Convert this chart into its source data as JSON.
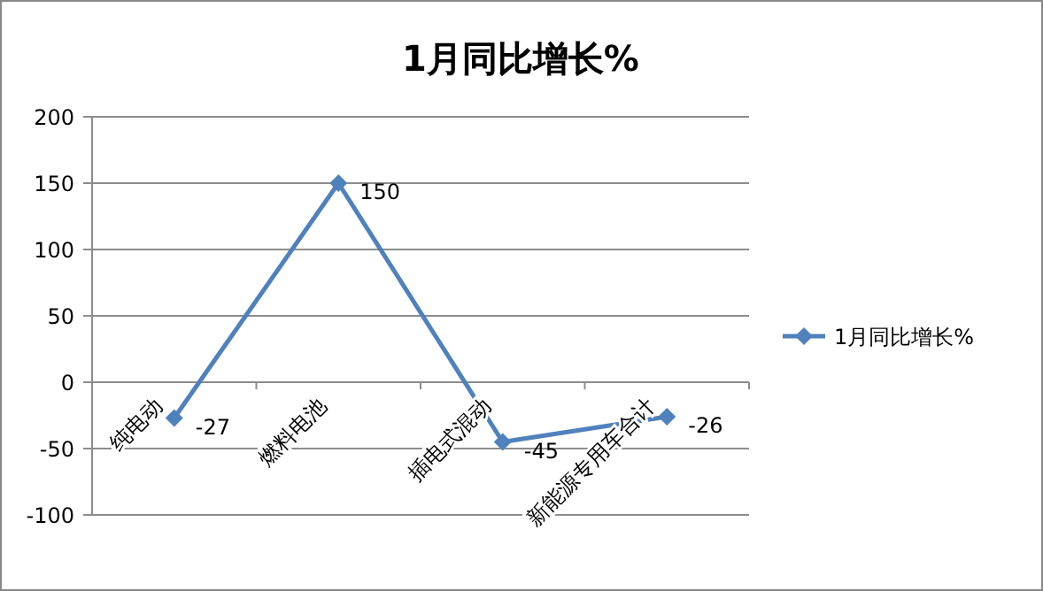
{
  "chart_data": {
    "type": "line",
    "title": "1月同比增长%",
    "categories": [
      "纯电动",
      "燃料电池",
      "插电式混动",
      "新能源专用车合计"
    ],
    "series": [
      {
        "name": "1月同比增长%",
        "color": "#4f81bd",
        "values": [
          -27,
          150,
          -45,
          -26
        ]
      }
    ],
    "ylim": [
      -100,
      200
    ],
    "yticks": [
      -100,
      -50,
      0,
      50,
      100,
      150,
      200
    ],
    "grid": "y",
    "legend": "right",
    "marker": "diamond",
    "data_labels": true
  }
}
